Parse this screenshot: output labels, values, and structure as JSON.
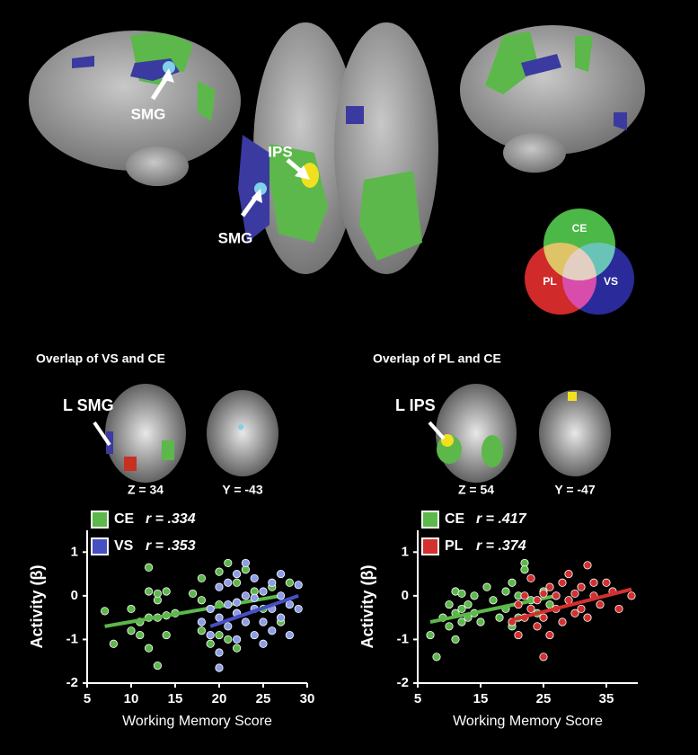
{
  "figure": {
    "brain_labels": [
      "SMG",
      "IPS",
      "SMG"
    ],
    "venn": [
      "CE",
      "PL",
      "VS"
    ],
    "panels": [
      {
        "title": "Overlap of VS and CE",
        "region": "L SMG",
        "slices": [
          "Z = 34",
          "Y = -43"
        ]
      },
      {
        "title": "Overlap of PL and CE",
        "region": "L IPS",
        "slices": [
          "Z = 54",
          "Y = -47"
        ]
      }
    ]
  },
  "chart_data": [
    {
      "type": "scatter",
      "ylabel": "Activity (β)",
      "xlabel": "Working Memory Score",
      "xlim": [
        5,
        30
      ],
      "xticks": [
        5,
        10,
        15,
        20,
        25,
        30
      ],
      "ylim": [
        -2,
        1.5
      ],
      "yticks": [
        -2,
        -1,
        0,
        1
      ],
      "series": [
        {
          "name": "CE",
          "stat": "r = .334",
          "color": "#5cb84a",
          "line_color": "#5cb84a",
          "trend_x": [
            7,
            27
          ],
          "trend_y": [
            -0.7,
            0.0
          ],
          "x": [
            7,
            8,
            10,
            10,
            11,
            11,
            12,
            12,
            12,
            12,
            13,
            13,
            13,
            13,
            14,
            14,
            14,
            15,
            17,
            18,
            18,
            19,
            19,
            20,
            20,
            21,
            21,
            22,
            22,
            23,
            24,
            25,
            26,
            27,
            28,
            18,
            20,
            22
          ],
          "values": [
            -0.35,
            -1.1,
            -0.3,
            -0.8,
            -0.6,
            -0.9,
            0.1,
            -0.5,
            0.65,
            -1.2,
            -0.1,
            -0.5,
            -1.6,
            0.05,
            0.1,
            -0.45,
            -0.9,
            -0.4,
            0.05,
            -0.8,
            0.4,
            -0.3,
            -1.1,
            0.55,
            -0.2,
            0.75,
            -1.0,
            0.3,
            -0.4,
            0.6,
            0.1,
            -0.3,
            0.2,
            -0.6,
            0.3,
            -0.1,
            -0.9,
            -1.2
          ]
        },
        {
          "name": "VS",
          "stat": "r = .353",
          "color": "#8e9ee6",
          "line_color": "#4650c0",
          "trend_x": [
            19,
            29
          ],
          "trend_y": [
            -0.7,
            0.0
          ],
          "x": [
            18,
            19,
            19,
            20,
            20,
            20,
            20,
            21,
            21,
            21,
            22,
            22,
            22,
            23,
            23,
            23,
            24,
            24,
            24,
            25,
            25,
            25,
            26,
            26,
            26,
            27,
            27,
            27,
            28,
            28,
            29,
            29,
            24,
            22
          ],
          "values": [
            -0.6,
            -0.3,
            -0.9,
            -1.3,
            -0.5,
            0.2,
            -1.65,
            -0.7,
            0.3,
            -0.2,
            -0.4,
            -1.0,
            0.5,
            0.0,
            -0.6,
            0.75,
            -0.3,
            -0.9,
            0.4,
            0.1,
            -0.6,
            -1.1,
            0.3,
            -0.3,
            -0.8,
            0.0,
            -0.5,
            0.5,
            -0.2,
            -0.9,
            0.25,
            -0.3,
            -0.05,
            -0.15
          ]
        }
      ]
    },
    {
      "type": "scatter",
      "ylabel": "Activity (β)",
      "xlabel": "Working Memory Score",
      "xlim": [
        5,
        40
      ],
      "xticks": [
        5,
        15,
        25,
        35
      ],
      "ylim": [
        -2,
        1.5
      ],
      "yticks": [
        -2,
        -1,
        0,
        1
      ],
      "series": [
        {
          "name": "CE",
          "stat": "r = .417",
          "color": "#5cb84a",
          "line_color": "#5cb84a",
          "trend_x": [
            7,
            27
          ],
          "trend_y": [
            -0.6,
            0.0
          ],
          "x": [
            7,
            8,
            9,
            10,
            10,
            11,
            11,
            11,
            12,
            12,
            12,
            13,
            13,
            14,
            14,
            15,
            16,
            17,
            18,
            19,
            19,
            20,
            20,
            21,
            21,
            22,
            22,
            23,
            24,
            25,
            26,
            27
          ],
          "values": [
            -0.9,
            -1.4,
            -0.5,
            -0.2,
            -0.7,
            0.1,
            -0.4,
            -1.0,
            -0.3,
            0.05,
            -0.6,
            -0.2,
            -0.5,
            0.0,
            -0.4,
            -0.6,
            0.2,
            -0.1,
            -0.5,
            0.1,
            -0.3,
            -0.7,
            0.3,
            0.0,
            -0.5,
            0.75,
            0.6,
            -0.1,
            -0.4,
            0.1,
            -0.2,
            0.0
          ]
        },
        {
          "name": "PL",
          "stat": "r = .374",
          "color": "#d33030",
          "line_color": "#d33030",
          "trend_x": [
            20,
            39
          ],
          "trend_y": [
            -0.55,
            0.15
          ],
          "x": [
            20,
            21,
            21,
            22,
            22,
            23,
            23,
            24,
            24,
            25,
            25,
            26,
            26,
            27,
            27,
            28,
            28,
            29,
            29,
            30,
            30,
            31,
            31,
            32,
            32,
            33,
            33,
            34,
            35,
            36,
            37,
            39,
            25
          ],
          "values": [
            -0.6,
            -0.2,
            -0.9,
            0.0,
            -0.5,
            -0.3,
            0.4,
            -0.7,
            -0.1,
            0.05,
            -0.5,
            -0.9,
            0.2,
            -0.3,
            0.0,
            0.3,
            -0.6,
            -0.1,
            0.5,
            -0.4,
            0.05,
            0.2,
            -0.3,
            0.7,
            -0.5,
            0.0,
            0.3,
            -0.2,
            0.3,
            0.1,
            -0.3,
            0.0,
            -1.4
          ]
        }
      ]
    }
  ]
}
